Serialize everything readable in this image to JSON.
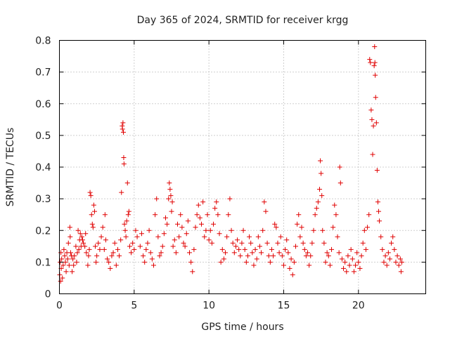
{
  "chart_data": {
    "type": "scatter",
    "title": "Day 365 of 2024, SRMTID for receiver krgg",
    "xlabel": "GPS time / hours",
    "ylabel": "SRMTID / TECUs",
    "xlim": [
      0,
      24.5
    ],
    "ylim": [
      0,
      0.8
    ],
    "x_ticks": [
      0,
      5,
      10,
      15,
      20
    ],
    "x_tick_labels": [
      "0",
      "5",
      "10",
      "15",
      "20"
    ],
    "y_ticks": [
      0,
      0.1,
      0.2,
      0.3,
      0.4,
      0.5,
      0.6,
      0.7,
      0.8
    ],
    "y_tick_labels": [
      "0",
      "0.1",
      "0.2",
      "0.3",
      "0.4",
      "0.5",
      "0.6",
      "0.7",
      "0.8"
    ],
    "grid": true,
    "marker": "plus",
    "series": [
      {
        "name": "SRMTID",
        "color": "#e00000",
        "points": [
          [
            0.02,
            0.06
          ],
          [
            0.05,
            0.1
          ],
          [
            0.08,
            0.04
          ],
          [
            0.1,
            0.13
          ],
          [
            0.12,
            0.08
          ],
          [
            0.15,
            0.11
          ],
          [
            0.2,
            0.05
          ],
          [
            0.25,
            0.09
          ],
          [
            0.3,
            0.14
          ],
          [
            0.35,
            0.12
          ],
          [
            0.4,
            0.1
          ],
          [
            0.45,
            0.07
          ],
          [
            0.5,
            0.13
          ],
          [
            0.55,
            0.11
          ],
          [
            0.6,
            0.16
          ],
          [
            0.65,
            0.09
          ],
          [
            0.7,
            0.21
          ],
          [
            0.72,
            0.18
          ],
          [
            0.75,
            0.13
          ],
          [
            0.8,
            0.12
          ],
          [
            0.85,
            0.07
          ],
          [
            0.9,
            0.11
          ],
          [
            0.95,
            0.09
          ],
          [
            1.0,
            0.12
          ],
          [
            1.1,
            0.15
          ],
          [
            1.15,
            0.1
          ],
          [
            1.2,
            0.13
          ],
          [
            1.25,
            0.2
          ],
          [
            1.3,
            0.14
          ],
          [
            1.35,
            0.17
          ],
          [
            1.4,
            0.19
          ],
          [
            1.45,
            0.15
          ],
          [
            1.5,
            0.18
          ],
          [
            1.55,
            0.17
          ],
          [
            1.6,
            0.16
          ],
          [
            1.7,
            0.15
          ],
          [
            1.75,
            0.19
          ],
          [
            1.8,
            0.13
          ],
          [
            1.9,
            0.09
          ],
          [
            1.95,
            0.12
          ],
          [
            2.0,
            0.14
          ],
          [
            2.05,
            0.32
          ],
          [
            2.1,
            0.31
          ],
          [
            2.15,
            0.25
          ],
          [
            2.2,
            0.22
          ],
          [
            2.25,
            0.21
          ],
          [
            2.3,
            0.28
          ],
          [
            2.35,
            0.26
          ],
          [
            2.4,
            0.15
          ],
          [
            2.45,
            0.1
          ],
          [
            2.5,
            0.12
          ],
          [
            2.6,
            0.16
          ],
          [
            2.7,
            0.14
          ],
          [
            2.8,
            0.18
          ],
          [
            2.9,
            0.21
          ],
          [
            3.0,
            0.14
          ],
          [
            3.05,
            0.25
          ],
          [
            3.1,
            0.17
          ],
          [
            3.2,
            0.11
          ],
          [
            3.3,
            0.1
          ],
          [
            3.4,
            0.08
          ],
          [
            3.5,
            0.12
          ],
          [
            3.6,
            0.13
          ],
          [
            3.7,
            0.16
          ],
          [
            3.8,
            0.09
          ],
          [
            3.9,
            0.14
          ],
          [
            4.0,
            0.12
          ],
          [
            4.1,
            0.17
          ],
          [
            4.15,
            0.32
          ],
          [
            4.2,
            0.53
          ],
          [
            4.22,
            0.52
          ],
          [
            4.25,
            0.54
          ],
          [
            4.28,
            0.51
          ],
          [
            4.3,
            0.43
          ],
          [
            4.32,
            0.41
          ],
          [
            4.35,
            0.22
          ],
          [
            4.4,
            0.2
          ],
          [
            4.45,
            0.18
          ],
          [
            4.5,
            0.23
          ],
          [
            4.55,
            0.35
          ],
          [
            4.6,
            0.25
          ],
          [
            4.65,
            0.26
          ],
          [
            4.7,
            0.15
          ],
          [
            4.8,
            0.13
          ],
          [
            4.9,
            0.16
          ],
          [
            5.0,
            0.14
          ],
          [
            5.1,
            0.2
          ],
          [
            5.2,
            0.18
          ],
          [
            5.4,
            0.15
          ],
          [
            5.5,
            0.19
          ],
          [
            5.6,
            0.12
          ],
          [
            5.7,
            0.1
          ],
          [
            5.8,
            0.14
          ],
          [
            5.9,
            0.16
          ],
          [
            6.0,
            0.2
          ],
          [
            6.1,
            0.13
          ],
          [
            6.2,
            0.11
          ],
          [
            6.3,
            0.09
          ],
          [
            6.4,
            0.25
          ],
          [
            6.5,
            0.3
          ],
          [
            6.6,
            0.18
          ],
          [
            6.7,
            0.12
          ],
          [
            6.8,
            0.13
          ],
          [
            6.9,
            0.15
          ],
          [
            7.0,
            0.19
          ],
          [
            7.1,
            0.24
          ],
          [
            7.2,
            0.22
          ],
          [
            7.3,
            0.3
          ],
          [
            7.35,
            0.35
          ],
          [
            7.4,
            0.33
          ],
          [
            7.45,
            0.31
          ],
          [
            7.5,
            0.26
          ],
          [
            7.55,
            0.29
          ],
          [
            7.6,
            0.15
          ],
          [
            7.7,
            0.17
          ],
          [
            7.8,
            0.13
          ],
          [
            7.9,
            0.22
          ],
          [
            8.0,
            0.18
          ],
          [
            8.1,
            0.25
          ],
          [
            8.2,
            0.21
          ],
          [
            8.3,
            0.16
          ],
          [
            8.4,
            0.15
          ],
          [
            8.5,
            0.19
          ],
          [
            8.6,
            0.23
          ],
          [
            8.7,
            0.13
          ],
          [
            8.8,
            0.1
          ],
          [
            8.9,
            0.07
          ],
          [
            9.0,
            0.14
          ],
          [
            9.1,
            0.21
          ],
          [
            9.2,
            0.25
          ],
          [
            9.3,
            0.28
          ],
          [
            9.4,
            0.24
          ],
          [
            9.5,
            0.22
          ],
          [
            9.6,
            0.29
          ],
          [
            9.7,
            0.18
          ],
          [
            9.8,
            0.2
          ],
          [
            9.9,
            0.25
          ],
          [
            10.0,
            0.17
          ],
          [
            10.1,
            0.2
          ],
          [
            10.2,
            0.16
          ],
          [
            10.3,
            0.22
          ],
          [
            10.4,
            0.27
          ],
          [
            10.5,
            0.29
          ],
          [
            10.6,
            0.25
          ],
          [
            10.7,
            0.19
          ],
          [
            10.8,
            0.1
          ],
          [
            10.9,
            0.14
          ],
          [
            11.0,
            0.11
          ],
          [
            11.1,
            0.13
          ],
          [
            11.2,
            0.18
          ],
          [
            11.3,
            0.25
          ],
          [
            11.4,
            0.3
          ],
          [
            11.5,
            0.2
          ],
          [
            11.6,
            0.16
          ],
          [
            11.7,
            0.13
          ],
          [
            11.8,
            0.15
          ],
          [
            11.9,
            0.17
          ],
          [
            12.0,
            0.14
          ],
          [
            12.1,
            0.12
          ],
          [
            12.2,
            0.16
          ],
          [
            12.3,
            0.2
          ],
          [
            12.4,
            0.14
          ],
          [
            12.5,
            0.1
          ],
          [
            12.6,
            0.12
          ],
          [
            12.7,
            0.18
          ],
          [
            12.8,
            0.16
          ],
          [
            12.9,
            0.13
          ],
          [
            13.0,
            0.09
          ],
          [
            13.1,
            0.14
          ],
          [
            13.2,
            0.11
          ],
          [
            13.3,
            0.18
          ],
          [
            13.4,
            0.15
          ],
          [
            13.5,
            0.13
          ],
          [
            13.6,
            0.2
          ],
          [
            13.7,
            0.29
          ],
          [
            13.8,
            0.26
          ],
          [
            13.9,
            0.16
          ],
          [
            14.0,
            0.12
          ],
          [
            14.1,
            0.1
          ],
          [
            14.2,
            0.14
          ],
          [
            14.3,
            0.12
          ],
          [
            14.4,
            0.22
          ],
          [
            14.5,
            0.21
          ],
          [
            14.6,
            0.16
          ],
          [
            14.7,
            0.13
          ],
          [
            14.8,
            0.18
          ],
          [
            14.9,
            0.12
          ],
          [
            15.0,
            0.09
          ],
          [
            15.1,
            0.14
          ],
          [
            15.2,
            0.17
          ],
          [
            15.3,
            0.13
          ],
          [
            15.4,
            0.08
          ],
          [
            15.5,
            0.11
          ],
          [
            15.6,
            0.06
          ],
          [
            15.7,
            0.1
          ],
          [
            15.8,
            0.15
          ],
          [
            15.9,
            0.22
          ],
          [
            16.0,
            0.25
          ],
          [
            16.1,
            0.18
          ],
          [
            16.2,
            0.21
          ],
          [
            16.3,
            0.16
          ],
          [
            16.4,
            0.14
          ],
          [
            16.5,
            0.12
          ],
          [
            16.6,
            0.13
          ],
          [
            16.7,
            0.09
          ],
          [
            16.8,
            0.12
          ],
          [
            16.9,
            0.16
          ],
          [
            17.0,
            0.2
          ],
          [
            17.1,
            0.25
          ],
          [
            17.2,
            0.27
          ],
          [
            17.3,
            0.29
          ],
          [
            17.4,
            0.33
          ],
          [
            17.45,
            0.42
          ],
          [
            17.5,
            0.38
          ],
          [
            17.55,
            0.31
          ],
          [
            17.6,
            0.2
          ],
          [
            17.7,
            0.16
          ],
          [
            17.8,
            0.1
          ],
          [
            17.9,
            0.13
          ],
          [
            18.0,
            0.12
          ],
          [
            18.1,
            0.09
          ],
          [
            18.2,
            0.14
          ],
          [
            18.3,
            0.21
          ],
          [
            18.4,
            0.28
          ],
          [
            18.5,
            0.25
          ],
          [
            18.6,
            0.18
          ],
          [
            18.7,
            0.13
          ],
          [
            18.75,
            0.4
          ],
          [
            18.8,
            0.35
          ],
          [
            18.9,
            0.11
          ],
          [
            19.0,
            0.08
          ],
          [
            19.1,
            0.1
          ],
          [
            19.2,
            0.07
          ],
          [
            19.3,
            0.12
          ],
          [
            19.4,
            0.09
          ],
          [
            19.5,
            0.14
          ],
          [
            19.6,
            0.11
          ],
          [
            19.7,
            0.07
          ],
          [
            19.8,
            0.09
          ],
          [
            19.9,
            0.13
          ],
          [
            20.0,
            0.1
          ],
          [
            20.1,
            0.08
          ],
          [
            20.2,
            0.12
          ],
          [
            20.3,
            0.16
          ],
          [
            20.4,
            0.2
          ],
          [
            20.5,
            0.14
          ],
          [
            20.6,
            0.21
          ],
          [
            20.7,
            0.25
          ],
          [
            20.75,
            0.74
          ],
          [
            20.8,
            0.73
          ],
          [
            20.85,
            0.58
          ],
          [
            20.9,
            0.55
          ],
          [
            20.95,
            0.44
          ],
          [
            21.0,
            0.53
          ],
          [
            21.05,
            0.72
          ],
          [
            21.08,
            0.78
          ],
          [
            21.1,
            0.73
          ],
          [
            21.12,
            0.69
          ],
          [
            21.15,
            0.62
          ],
          [
            21.2,
            0.54
          ],
          [
            21.25,
            0.39
          ],
          [
            21.3,
            0.29
          ],
          [
            21.35,
            0.26
          ],
          [
            21.4,
            0.23
          ],
          [
            21.5,
            0.18
          ],
          [
            21.6,
            0.14
          ],
          [
            21.7,
            0.1
          ],
          [
            21.8,
            0.12
          ],
          [
            21.9,
            0.09
          ],
          [
            22.0,
            0.13
          ],
          [
            22.1,
            0.11
          ],
          [
            22.2,
            0.16
          ],
          [
            22.3,
            0.18
          ],
          [
            22.4,
            0.14
          ],
          [
            22.5,
            0.1
          ],
          [
            22.6,
            0.12
          ],
          [
            22.7,
            0.09
          ],
          [
            22.8,
            0.11
          ],
          [
            22.85,
            0.07
          ],
          [
            22.9,
            0.1
          ]
        ]
      }
    ]
  }
}
